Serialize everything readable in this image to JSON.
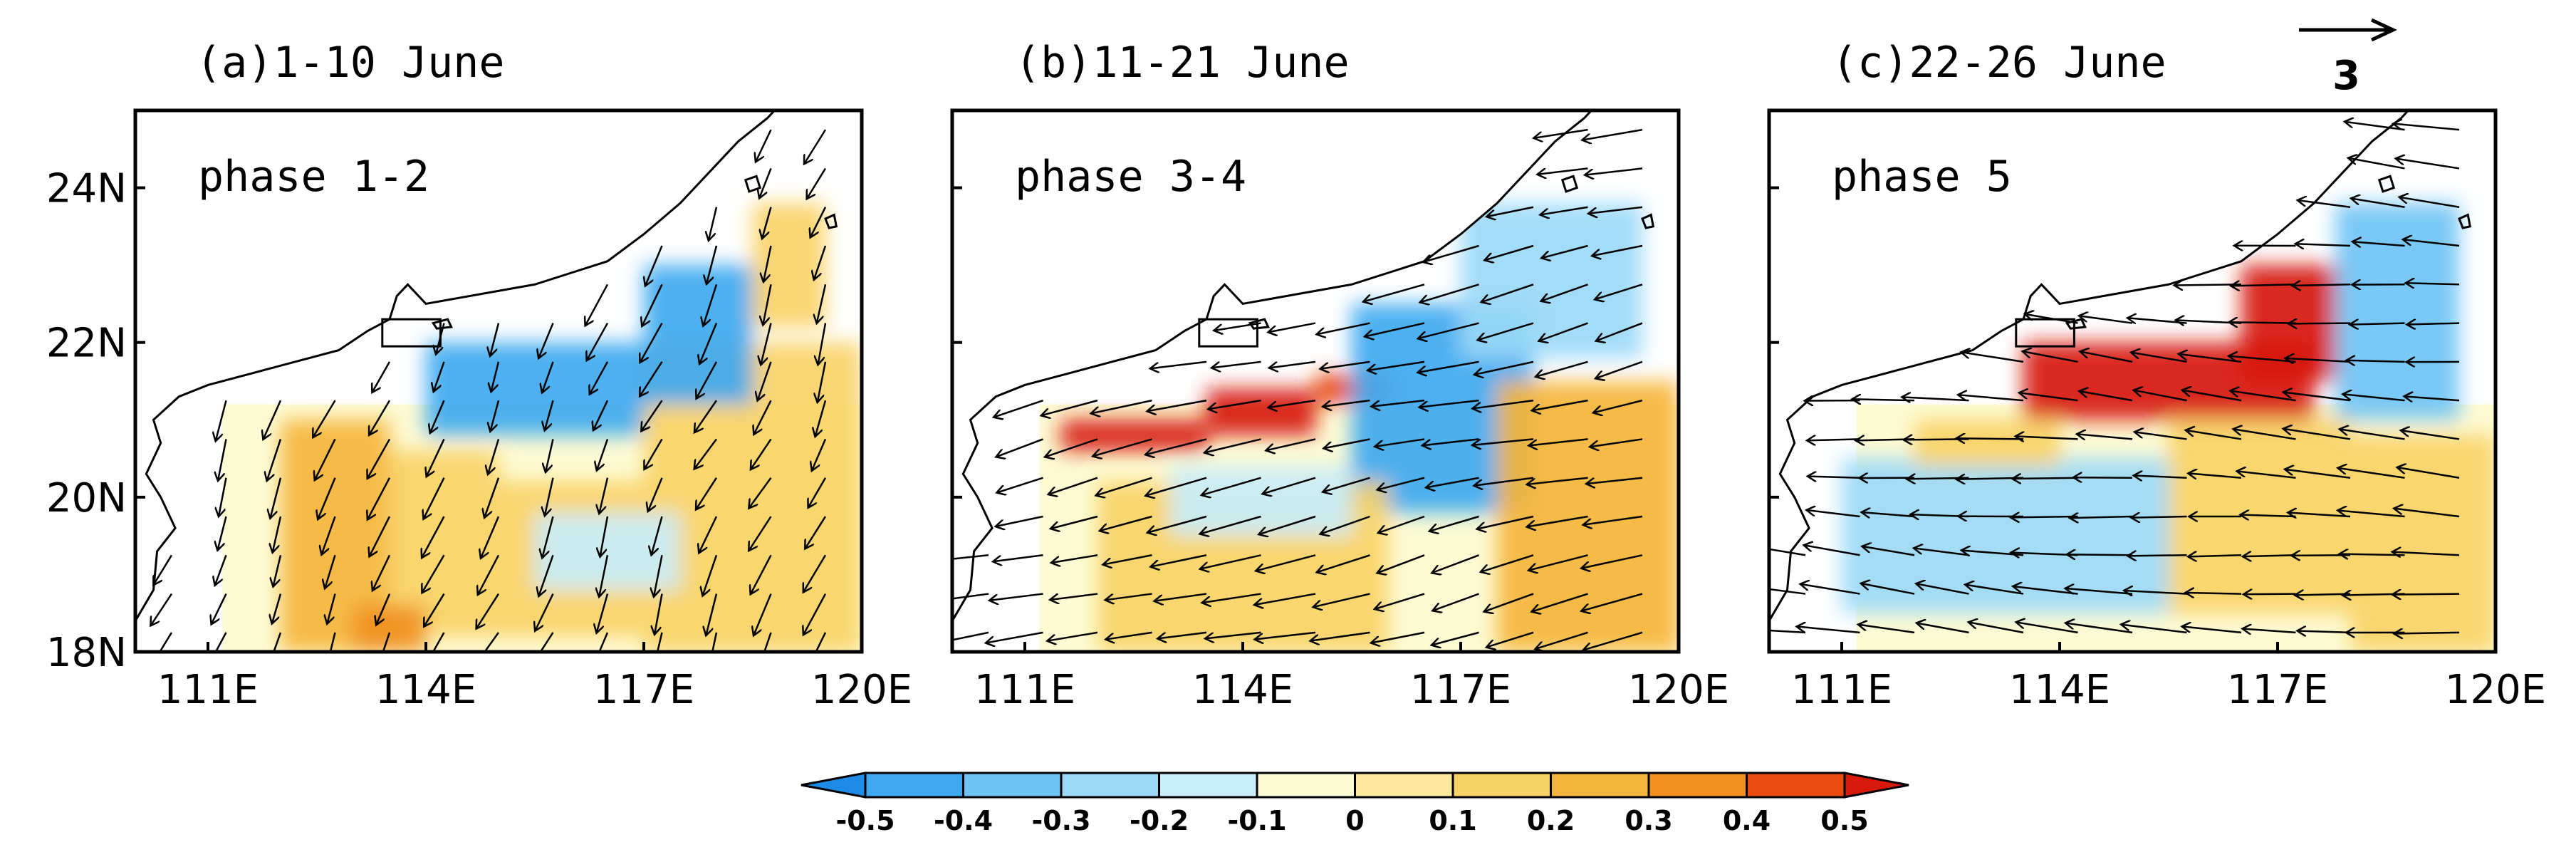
{
  "chart_data": [
    {
      "type": "heatmap",
      "title": "(a)1-10 June",
      "annotation": "phase 1-2",
      "xlim": [
        110,
        120
      ],
      "ylim": [
        18,
        25
      ],
      "xticks": [
        "111E",
        "114E",
        "117E",
        "120E"
      ],
      "yticks": [
        "18N",
        "20N",
        "22N",
        "24N"
      ],
      "patches": [
        {
          "lon": [
            112.0,
            113.5
          ],
          "lat": [
            18.0,
            21.0
          ],
          "value": 0.25
        },
        {
          "lon": [
            113.5,
            115.0
          ],
          "lat": [
            18.2,
            20.6
          ],
          "value": 0.2
        },
        {
          "lon": [
            115.0,
            117.0
          ],
          "lat": [
            18.2,
            20.2
          ],
          "value": 0.15
        },
        {
          "lon": [
            117.0,
            120.0
          ],
          "lat": [
            18.0,
            22.0
          ],
          "value": 0.2
        },
        {
          "lon": [
            114.0,
            117.0
          ],
          "lat": [
            20.8,
            22.0
          ],
          "value": -0.4
        },
        {
          "lon": [
            117.0,
            118.5
          ],
          "lat": [
            21.2,
            23.0
          ],
          "value": -0.4
        },
        {
          "lon": [
            118.5,
            119.5
          ],
          "lat": [
            22.2,
            23.8
          ],
          "value": 0.15
        },
        {
          "lon": [
            115.5,
            117.5
          ],
          "lat": [
            18.8,
            19.8
          ],
          "value": -0.15
        },
        {
          "lon": [
            113.0,
            114.0
          ],
          "lat": [
            18.0,
            18.6
          ],
          "value": 0.3
        }
      ],
      "wind": {
        "u": -0.5,
        "v": -1.2,
        "region": "SW flow, southward over sea"
      }
    },
    {
      "type": "heatmap",
      "title": "(b)11-21 June",
      "annotation": "phase 3-4",
      "xlim": [
        110,
        120
      ],
      "ylim": [
        18,
        25
      ],
      "xticks": [
        "111E",
        "114E",
        "117E",
        "120E"
      ],
      "yticks": [
        "18N",
        "20N",
        "22N",
        "24N"
      ],
      "patches": [
        {
          "lon": [
            111.5,
            113.5
          ],
          "lat": [
            20.6,
            21.0
          ],
          "value": 0.5
        },
        {
          "lon": [
            113.5,
            115.0
          ],
          "lat": [
            20.8,
            21.4
          ],
          "value": 0.5
        },
        {
          "lon": [
            115.0,
            116.0
          ],
          "lat": [
            21.2,
            21.6
          ],
          "value": 0.45
        },
        {
          "lon": [
            115.5,
            118.0
          ],
          "lat": [
            19.8,
            22.5
          ],
          "value": -0.4
        },
        {
          "lon": [
            117.0,
            119.5
          ],
          "lat": [
            21.8,
            23.8
          ],
          "value": -0.3
        },
        {
          "lon": [
            112.0,
            116.0
          ],
          "lat": [
            18.0,
            20.2
          ],
          "value": 0.15
        },
        {
          "lon": [
            117.5,
            120.0
          ],
          "lat": [
            18.0,
            21.5
          ],
          "value": 0.25
        },
        {
          "lon": [
            113.0,
            115.5
          ],
          "lat": [
            19.5,
            20.4
          ],
          "value": -0.15
        }
      ],
      "wind": {
        "u": -1.8,
        "v": -0.4,
        "region": "easterly flow"
      }
    },
    {
      "type": "heatmap",
      "title": "(c)22-26 June",
      "annotation": "phase 5",
      "xlim": [
        110,
        120
      ],
      "ylim": [
        18,
        25
      ],
      "xticks": [
        "111E",
        "114E",
        "117E",
        "120E"
      ],
      "yticks": [
        "18N",
        "20N",
        "22N",
        "24N"
      ],
      "patches": [
        {
          "lon": [
            113.5,
            117.5
          ],
          "lat": [
            21.0,
            22.0
          ],
          "value": 0.5
        },
        {
          "lon": [
            116.5,
            117.8
          ],
          "lat": [
            21.5,
            23.0
          ],
          "value": 0.5
        },
        {
          "lon": [
            117.8,
            119.5
          ],
          "lat": [
            21.0,
            23.8
          ],
          "value": -0.35
        },
        {
          "lon": [
            111.0,
            115.5
          ],
          "lat": [
            18.5,
            20.5
          ],
          "value": -0.2
        },
        {
          "lon": [
            115.5,
            118.0
          ],
          "lat": [
            18.5,
            21.0
          ],
          "value": 0.15
        },
        {
          "lon": [
            118.0,
            120.0
          ],
          "lat": [
            18.0,
            20.8
          ],
          "value": 0.2
        },
        {
          "lon": [
            112.0,
            114.0
          ],
          "lat": [
            20.4,
            21.0
          ],
          "value": 0.2
        }
      ],
      "wind": {
        "u": -2.0,
        "v": 0.15,
        "region": "easterly to northeasterly flow"
      },
      "reference_vector": {
        "label": "3",
        "u": 3,
        "v": 0
      }
    }
  ],
  "colorbar": {
    "levels": [
      "-0.5",
      "-0.4",
      "-0.3",
      "-0.2",
      "-0.1",
      "0",
      "0.1",
      "0.2",
      "0.3",
      "0.4",
      "0.5"
    ],
    "colors": [
      "#1e8ce6",
      "#3ea9f0",
      "#6fc3f4",
      "#9bd9f7",
      "#c9eefb",
      "#fdfbd4",
      "#fbe89a",
      "#f8d366",
      "#f5b53a",
      "#f08f1e",
      "#e84a0f",
      "#d7190b"
    ]
  }
}
